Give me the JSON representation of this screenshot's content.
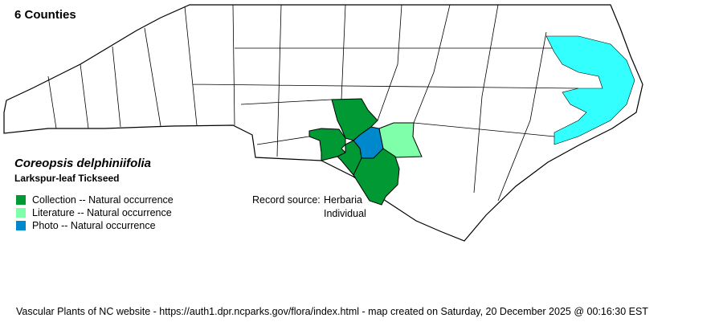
{
  "map": {
    "county_count_label": "6 Counties",
    "scientific_name": "Coreopsis delphiniifolia",
    "common_name": "Larkspur-leaf Tickseed",
    "colors": {
      "collection": "#009933",
      "literature": "#80ffaa",
      "photo": "#0088cc",
      "water": "#33ffff",
      "county_fill": "#ffffff",
      "border": "#000000"
    }
  },
  "legend": [
    {
      "label": "Collection -- Natural occurrence",
      "color": "#009933"
    },
    {
      "label": "Literature -- Natural occurrence",
      "color": "#80ffaa"
    },
    {
      "label": "Photo -- Natural occurrence",
      "color": "#0088cc"
    }
  ],
  "record_source": {
    "label": "Record source:",
    "values": [
      "Herbaria",
      "Individual"
    ]
  },
  "footer": "Vascular Plants of NC website - https://auth1.dpr.ncparks.gov/flora/index.html - map created on Saturday, 20 December 2025 @ 00:16:30 EST"
}
